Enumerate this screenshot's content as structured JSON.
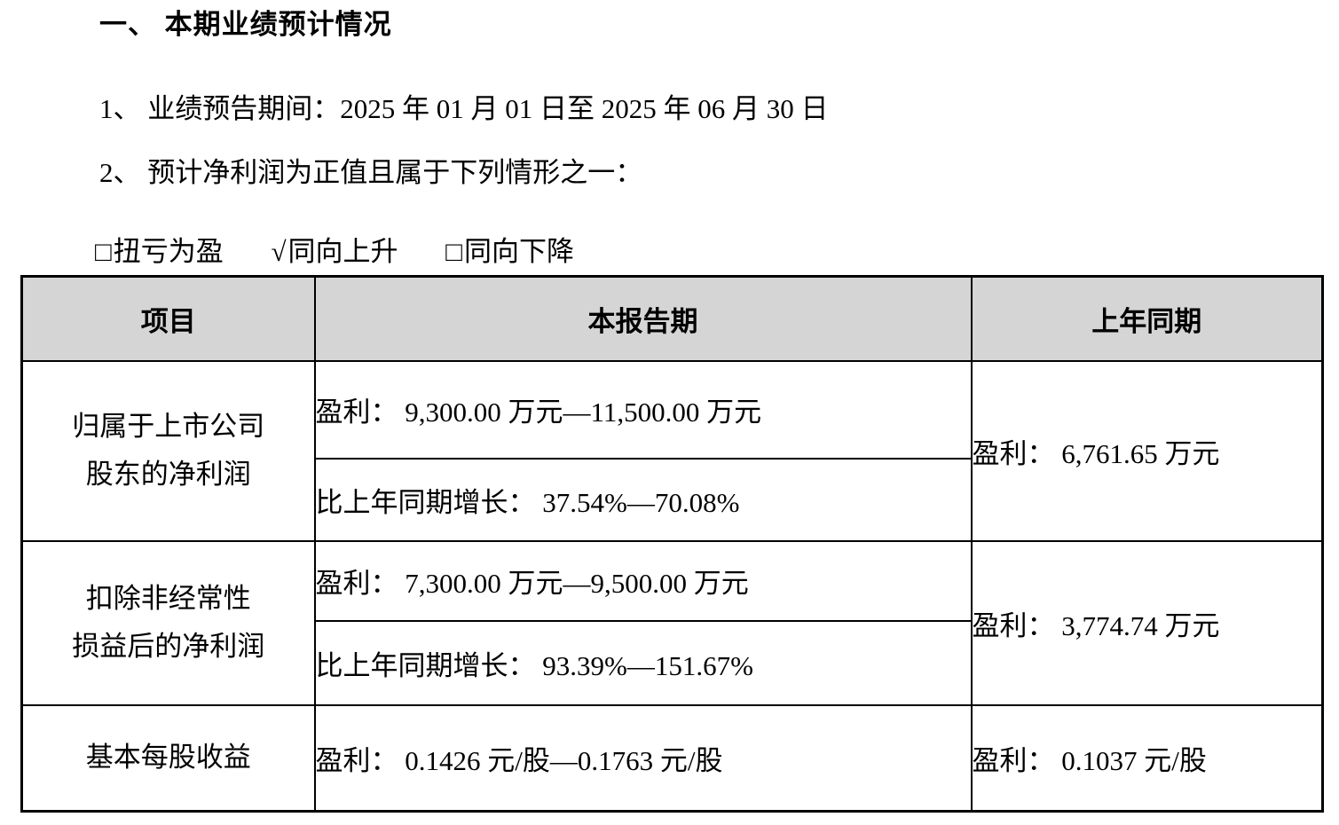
{
  "page": {
    "background": "#ffffff",
    "text_color": "#000000"
  },
  "heading": {
    "text": "一、 本期业绩预计情况"
  },
  "paragraphs": {
    "forecast_period": "1、 业绩预告期间：2025 年 01 月 01 日至 2025 年 06 月 30 日",
    "profit_condition": "2、 预计净利润为正值且属于下列情形之一："
  },
  "options": [
    {
      "symbol": "□",
      "label": "扭亏为盈",
      "checked": false
    },
    {
      "symbol": "√",
      "label": "同向上升",
      "checked": true
    },
    {
      "symbol": "□",
      "label": "同向下降",
      "checked": false
    }
  ],
  "table": {
    "header_bg": "#d5d5d5",
    "border_color": "#000000",
    "columns": [
      "项目",
      "本报告期",
      "上年同期"
    ],
    "rows": [
      {
        "item": "归属于上市公司\n股东的净利润",
        "current_profit": "盈利： 9,300.00 万元—11,500.00 万元",
        "current_growth": "比上年同期增长： 37.54%—70.08%",
        "prior": "盈利： 6,761.65 万元"
      },
      {
        "item": "扣除非经常性\n损益后的净利润",
        "current_profit": "盈利： 7,300.00 万元—9,500.00 万元",
        "current_growth": "比上年同期增长： 93.39%—151.67%",
        "prior": "盈利： 3,774.74 万元"
      },
      {
        "item": "基本每股收益",
        "current_profit": "盈利： 0.1426 元/股—0.1763 元/股",
        "prior": "盈利： 0.1037 元/股"
      }
    ]
  }
}
